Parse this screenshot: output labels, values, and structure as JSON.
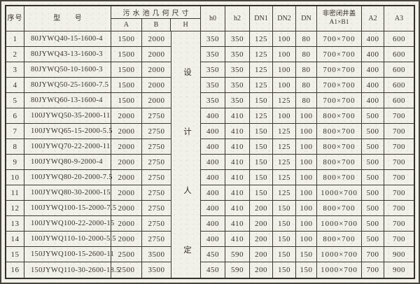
{
  "header": {
    "serial": "序号",
    "model": "型 号",
    "pool_group": "污水池几何尺寸",
    "A": "A",
    "B": "B",
    "H": "H",
    "h0": "h0",
    "h2": "h2",
    "DN1": "DN1",
    "DN2": "DN2",
    "DN": "DN",
    "cover_line1": "非密闭井盖",
    "cover_line2": "A1×B1",
    "A2": "A2",
    "A3": "A3"
  },
  "h_note": [
    "设",
    "计",
    "人",
    "定"
  ],
  "rows": [
    {
      "no": "1",
      "model": "80JYWQ40-15-1600-4",
      "A": "1500",
      "B": "2000",
      "h0": "350",
      "h2": "350",
      "DN1": "125",
      "DN2": "100",
      "DN": "80",
      "cover": "700×700",
      "A2": "400",
      "A3": "600"
    },
    {
      "no": "2",
      "model": "80JYWQ43-13-1600-3",
      "A": "1500",
      "B": "2000",
      "h0": "350",
      "h2": "350",
      "DN1": "125",
      "DN2": "100",
      "DN": "80",
      "cover": "700×700",
      "A2": "400",
      "A3": "600"
    },
    {
      "no": "3",
      "model": "80JYWQ50-10-1600-3",
      "A": "1500",
      "B": "2000",
      "h0": "350",
      "h2": "350",
      "DN1": "125",
      "DN2": "100",
      "DN": "80",
      "cover": "700×700",
      "A2": "400",
      "A3": "600"
    },
    {
      "no": "4",
      "model": "80JYWQ50-25-1600-7.5",
      "A": "1500",
      "B": "2000",
      "h0": "350",
      "h2": "350",
      "DN1": "125",
      "DN2": "100",
      "DN": "80",
      "cover": "700×700",
      "A2": "400",
      "A3": "600"
    },
    {
      "no": "5",
      "model": "80JYWQ60-13-1600-4",
      "A": "1500",
      "B": "2000",
      "h0": "350",
      "h2": "350",
      "DN1": "150",
      "DN2": "125",
      "DN": "80",
      "cover": "700×700",
      "A2": "400",
      "A3": "600"
    },
    {
      "no": "6",
      "model": "100JYWQ50-35-2000-11",
      "A": "2000",
      "B": "2750",
      "h0": "400",
      "h2": "410",
      "DN1": "125",
      "DN2": "100",
      "DN": "100",
      "cover": "800×700",
      "A2": "500",
      "A3": "700"
    },
    {
      "no": "7",
      "model": "100JYWQ65-15-2000-5.5",
      "A": "2000",
      "B": "2750",
      "h0": "400",
      "h2": "410",
      "DN1": "150",
      "DN2": "125",
      "DN": "100",
      "cover": "800×700",
      "A2": "500",
      "A3": "700"
    },
    {
      "no": "8",
      "model": "100JYWQ70-22-2000-11",
      "A": "2000",
      "B": "2750",
      "h0": "400",
      "h2": "410",
      "DN1": "150",
      "DN2": "125",
      "DN": "100",
      "cover": "800×700",
      "A2": "500",
      "A3": "700"
    },
    {
      "no": "9",
      "model": "100JYWQ80-9-2000-4",
      "A": "2000",
      "B": "2750",
      "h0": "400",
      "h2": "410",
      "DN1": "150",
      "DN2": "125",
      "DN": "100",
      "cover": "800×700",
      "A2": "500",
      "A3": "700"
    },
    {
      "no": "10",
      "model": "100JYWQ80-20-2000-7.5",
      "A": "2000",
      "B": "2750",
      "h0": "400",
      "h2": "410",
      "DN1": "150",
      "DN2": "125",
      "DN": "100",
      "cover": "800×700",
      "A2": "500",
      "A3": "700"
    },
    {
      "no": "11",
      "model": "100JYWQ80-30-2000-15",
      "A": "2000",
      "B": "2750",
      "h0": "400",
      "h2": "410",
      "DN1": "150",
      "DN2": "125",
      "DN": "100",
      "cover": "1000×700",
      "A2": "500",
      "A3": "700"
    },
    {
      "no": "12",
      "model": "100JYWQ100-15-2000-7.5",
      "A": "2000",
      "B": "2750",
      "h0": "400",
      "h2": "410",
      "DN1": "200",
      "DN2": "150",
      "DN": "100",
      "cover": "800×700",
      "A2": "500",
      "A3": "700"
    },
    {
      "no": "13",
      "model": "100JYWQ100-22-2000-15",
      "A": "2000",
      "B": "2750",
      "h0": "400",
      "h2": "410",
      "DN1": "200",
      "DN2": "150",
      "DN": "100",
      "cover": "1000×700",
      "A2": "500",
      "A3": "700"
    },
    {
      "no": "14",
      "model": "100JYWQ110-10-2000-5.5",
      "A": "2000",
      "B": "2750",
      "h0": "400",
      "h2": "410",
      "DN1": "200",
      "DN2": "150",
      "DN": "100",
      "cover": "800×700",
      "A2": "500",
      "A3": "700"
    },
    {
      "no": "15",
      "model": "150JYWQ100-15-2600-11",
      "A": "2500",
      "B": "3500",
      "h0": "450",
      "h2": "590",
      "DN1": "200",
      "DN2": "150",
      "DN": "150",
      "cover": "1000×700",
      "A2": "700",
      "A3": "900"
    },
    {
      "no": "16",
      "model": "150JYWQ110-30-2600-18.5",
      "A": "2500",
      "B": "3500",
      "h0": "450",
      "h2": "590",
      "DN1": "200",
      "DN2": "150",
      "DN": "150",
      "cover": "1000×700",
      "A2": "700",
      "A3": "900"
    }
  ]
}
